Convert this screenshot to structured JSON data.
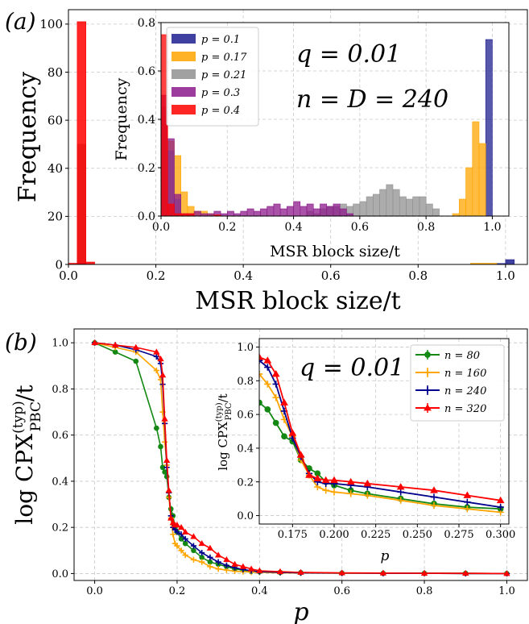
{
  "panel_a": {
    "label": "(a)",
    "main": {
      "xlabel": "MSR block size/t",
      "ylabel": "Frequency",
      "xlim": [
        0,
        1.05
      ],
      "ylim": [
        0,
        106
      ],
      "xticks": [
        "0.0",
        "0.2",
        "0.4",
        "0.6",
        "0.8",
        "1.0"
      ],
      "yticks": [
        "0",
        "20",
        "40",
        "60",
        "80",
        "100"
      ]
    },
    "inset": {
      "xlabel": "MSR block size/t",
      "ylabel": "Frequency",
      "xlim": [
        0,
        1.05
      ],
      "ylim": [
        0,
        0.8
      ],
      "xticks": [
        "0.0",
        "0.2",
        "0.4",
        "0.6",
        "0.8",
        "1.0"
      ],
      "yticks": [
        "0.0",
        "0.2",
        "0.4",
        "0.6",
        "0.8"
      ],
      "annotation_q": "q = 0.01",
      "annotation_n": "n = D = 240"
    },
    "legend": [
      "p = 0.1",
      "p = 0.17",
      "p = 0.21",
      "p = 0.3",
      "p = 0.4"
    ]
  },
  "panel_b": {
    "label": "(b)",
    "main": {
      "xlabel": "p",
      "ylabel": "log CPX(typ)PBC/t",
      "xlim": [
        -0.05,
        1.05
      ],
      "ylim": [
        -0.03,
        1.06
      ],
      "xticks": [
        "0.0",
        "0.2",
        "0.4",
        "0.6",
        "0.8",
        "1.0"
      ],
      "yticks": [
        "0.0",
        "0.2",
        "0.4",
        "0.6",
        "0.8",
        "1.0"
      ]
    },
    "inset": {
      "xlabel": "p",
      "ylabel": "log CPX(typ)PBC/t",
      "xlim": [
        0.155,
        0.305
      ],
      "ylim": [
        -0.05,
        1.05
      ],
      "xticks": [
        "0.175",
        "0.200",
        "0.225",
        "0.250",
        "0.275",
        "0.300"
      ],
      "yticks": [
        "0.0",
        "0.2",
        "0.4",
        "0.6",
        "0.8",
        "1.0"
      ],
      "annotation_q": "q = 0.01"
    },
    "legend": [
      "n = 80",
      "n = 160",
      "n = 240",
      "n = 320"
    ]
  },
  "chart_data": [
    {
      "type": "bar",
      "title": "",
      "xlabel": "MSR block size/t",
      "ylabel": "Frequency",
      "xlim": [
        0,
        1.05
      ],
      "ylim": [
        0,
        106
      ],
      "bin_width": 0.02,
      "series": [
        {
          "name": "p = 0.1",
          "color": "#1f1f8f",
          "bins": [
            [
              0.99,
              0.4
            ],
            [
              1.01,
              2
            ]
          ]
        },
        {
          "name": "p = 0.17",
          "color": "#ffa500",
          "bins": [
            [
              0.93,
              0.5
            ],
            [
              0.95,
              0.5
            ],
            [
              0.97,
              0.5
            ]
          ]
        },
        {
          "name": "p = 0.21",
          "color": "#808080",
          "bins": [
            [
              0.03,
              50
            ]
          ]
        },
        {
          "name": "p = 0.3",
          "color": "#8b008b",
          "bins": [
            [
              0.03,
              0.6
            ]
          ]
        },
        {
          "name": "p = 0.4",
          "color": "#ff0000",
          "bins": [
            [
              0.01,
              0.5
            ],
            [
              0.03,
              101
            ],
            [
              0.05,
              1
            ]
          ]
        }
      ],
      "grid": true
    },
    {
      "type": "bar",
      "title": "",
      "xlabel": "MSR block size/t",
      "ylabel": "Frequency",
      "xlim": [
        0,
        1.05
      ],
      "ylim": [
        0,
        0.8
      ],
      "legend_position": "top-left",
      "bin_width": 0.02,
      "series": [
        {
          "name": "p = 0.1",
          "color": "#1f1f8f",
          "bins": [
            [
              0.99,
              0.73
            ]
          ]
        },
        {
          "name": "p = 0.17",
          "color": "#ffa500",
          "bins": [
            [
              0.01,
              0.41
            ],
            [
              0.03,
              0.31
            ],
            [
              0.05,
              0.25
            ],
            [
              0.07,
              0.1
            ],
            [
              0.09,
              0.04
            ],
            [
              0.11,
              0.02
            ],
            [
              0.13,
              0.02
            ],
            [
              0.15,
              0.01
            ],
            [
              0.89,
              0.01
            ],
            [
              0.91,
              0.07
            ],
            [
              0.93,
              0.2
            ],
            [
              0.95,
              0.39
            ],
            [
              0.97,
              0.3
            ]
          ]
        },
        {
          "name": "p = 0.21",
          "color": "#909090",
          "bins": [
            [
              0.01,
              0.45
            ],
            [
              0.03,
              0.27
            ],
            [
              0.05,
              0.07
            ],
            [
              0.45,
              0.02
            ],
            [
              0.47,
              0.01
            ],
            [
              0.49,
              0.03
            ],
            [
              0.51,
              0.04
            ],
            [
              0.53,
              0.04
            ],
            [
              0.55,
              0.05
            ],
            [
              0.57,
              0.04
            ],
            [
              0.59,
              0.05
            ],
            [
              0.61,
              0.06
            ],
            [
              0.63,
              0.08
            ],
            [
              0.65,
              0.09
            ],
            [
              0.67,
              0.11
            ],
            [
              0.69,
              0.13
            ],
            [
              0.71,
              0.11
            ],
            [
              0.73,
              0.08
            ],
            [
              0.75,
              0.07
            ],
            [
              0.77,
              0.08
            ],
            [
              0.79,
              0.08
            ],
            [
              0.81,
              0.05
            ],
            [
              0.83,
              0.03
            ]
          ]
        },
        {
          "name": "p = 0.3",
          "color": "#8b1a8b",
          "bins": [
            [
              0.01,
              0.5
            ],
            [
              0.03,
              0.32
            ],
            [
              0.05,
              0.09
            ],
            [
              0.07,
              0.01
            ],
            [
              0.09,
              0.01
            ],
            [
              0.11,
              0.02
            ],
            [
              0.13,
              0.01
            ],
            [
              0.15,
              0.01
            ],
            [
              0.17,
              0.02
            ],
            [
              0.19,
              0.01
            ],
            [
              0.21,
              0.02
            ],
            [
              0.23,
              0.01
            ],
            [
              0.25,
              0.02
            ],
            [
              0.27,
              0.03
            ],
            [
              0.29,
              0.02
            ],
            [
              0.31,
              0.03
            ],
            [
              0.33,
              0.04
            ],
            [
              0.35,
              0.05
            ],
            [
              0.37,
              0.03
            ],
            [
              0.39,
              0.04
            ],
            [
              0.41,
              0.06
            ],
            [
              0.43,
              0.04
            ],
            [
              0.45,
              0.05
            ],
            [
              0.47,
              0.03
            ],
            [
              0.49,
              0.05
            ],
            [
              0.51,
              0.04
            ],
            [
              0.53,
              0.05
            ],
            [
              0.55,
              0.03
            ],
            [
              0.57,
              0.01
            ]
          ]
        },
        {
          "name": "p = 0.4",
          "color": "#ff0000",
          "bins": [
            [
              0.01,
              0.75
            ],
            [
              0.03,
              0.05
            ],
            [
              0.05,
              0.01
            ],
            [
              0.07,
              0.01
            ],
            [
              0.09,
              0.01
            ],
            [
              0.17,
              0.005
            ]
          ]
        }
      ],
      "grid": true
    },
    {
      "type": "line",
      "title": "",
      "xlabel": "p",
      "ylabel": "log CPX(typ)PBC/t",
      "xlim": [
        -0.05,
        1.05
      ],
      "ylim": [
        -0.03,
        1.06
      ],
      "grid": true,
      "series": [
        {
          "name": "n = 80",
          "color": "#138813",
          "marker": "circle",
          "x": [
            0.0,
            0.05,
            0.1,
            0.15,
            0.16,
            0.165,
            0.17,
            0.175,
            0.18,
            0.185,
            0.19,
            0.195,
            0.2,
            0.21,
            0.22,
            0.24,
            0.26,
            0.28,
            0.3,
            0.32,
            0.34,
            0.36,
            0.38,
            0.4,
            0.45,
            0.5,
            0.6,
            0.7,
            0.8,
            0.9,
            1.0
          ],
          "y": [
            1.0,
            0.96,
            0.92,
            0.63,
            0.55,
            0.46,
            0.44,
            0.42,
            0.33,
            0.28,
            0.25,
            0.2,
            0.18,
            0.15,
            0.13,
            0.1,
            0.07,
            0.05,
            0.04,
            0.03,
            0.02,
            0.015,
            0.01,
            0.008,
            0.005,
            0.004,
            0.002,
            0.001,
            0.001,
            0.001,
            0.0
          ]
        },
        {
          "name": "n = 160",
          "color": "#ffa500",
          "marker": "cross",
          "x": [
            0.0,
            0.05,
            0.1,
            0.15,
            0.16,
            0.165,
            0.17,
            0.175,
            0.18,
            0.185,
            0.19,
            0.195,
            0.2,
            0.21,
            0.22,
            0.24,
            0.26,
            0.28,
            0.3,
            0.32,
            0.34,
            0.36,
            0.38,
            0.4,
            0.45,
            0.5,
            0.6,
            0.7,
            0.8,
            0.9,
            1.0
          ],
          "y": [
            1.0,
            0.98,
            0.96,
            0.88,
            0.84,
            0.7,
            0.57,
            0.47,
            0.33,
            0.24,
            0.17,
            0.13,
            0.12,
            0.1,
            0.08,
            0.06,
            0.05,
            0.03,
            0.02,
            0.015,
            0.01,
            0.008,
            0.006,
            0.005,
            0.003,
            0.002,
            0.001,
            0.001,
            0.001,
            0.0,
            0.0
          ]
        },
        {
          "name": "n = 240",
          "color": "#00008b",
          "marker": "cross",
          "x": [
            0.0,
            0.05,
            0.1,
            0.15,
            0.16,
            0.165,
            0.17,
            0.175,
            0.18,
            0.185,
            0.19,
            0.195,
            0.2,
            0.21,
            0.22,
            0.24,
            0.26,
            0.28,
            0.3,
            0.32,
            0.34,
            0.36,
            0.38,
            0.4,
            0.45,
            0.5,
            0.6,
            0.7,
            0.8,
            0.9,
            1.0
          ],
          "y": [
            1.0,
            0.99,
            0.97,
            0.94,
            0.91,
            0.82,
            0.65,
            0.46,
            0.35,
            0.25,
            0.2,
            0.19,
            0.18,
            0.17,
            0.15,
            0.12,
            0.09,
            0.07,
            0.05,
            0.035,
            0.025,
            0.018,
            0.012,
            0.008,
            0.005,
            0.003,
            0.002,
            0.001,
            0.001,
            0.0,
            0.0
          ]
        },
        {
          "name": "n = 320",
          "color": "#ff0000",
          "marker": "triangle",
          "x": [
            0.0,
            0.05,
            0.1,
            0.15,
            0.16,
            0.165,
            0.17,
            0.175,
            0.18,
            0.185,
            0.19,
            0.195,
            0.2,
            0.21,
            0.22,
            0.24,
            0.26,
            0.28,
            0.3,
            0.32,
            0.34,
            0.36,
            0.38,
            0.4,
            0.45,
            0.5,
            0.6,
            0.7,
            0.8,
            0.9,
            1.0
          ],
          "y": [
            1.0,
            0.99,
            0.98,
            0.96,
            0.93,
            0.86,
            0.67,
            0.49,
            0.36,
            0.24,
            0.22,
            0.21,
            0.21,
            0.2,
            0.18,
            0.16,
            0.13,
            0.11,
            0.08,
            0.06,
            0.04,
            0.03,
            0.02,
            0.012,
            0.008,
            0.005,
            0.003,
            0.002,
            0.001,
            0.001,
            0.0
          ]
        }
      ]
    },
    {
      "type": "line",
      "title": "",
      "xlabel": "p",
      "ylabel": "log CPX(typ)PBC/t",
      "xlim": [
        0.155,
        0.305
      ],
      "ylim": [
        -0.05,
        1.05
      ],
      "legend_position": "top-right",
      "grid": true,
      "series": [
        {
          "name": "n = 80",
          "color": "#138813",
          "marker": "circle",
          "x": [
            0.155,
            0.16,
            0.165,
            0.17,
            0.175,
            0.18,
            0.185,
            0.19,
            0.195,
            0.2,
            0.21,
            0.22,
            0.24,
            0.26,
            0.28,
            0.3
          ],
          "y": [
            0.67,
            0.63,
            0.55,
            0.47,
            0.44,
            0.33,
            0.28,
            0.25,
            0.2,
            0.18,
            0.15,
            0.13,
            0.1,
            0.07,
            0.05,
            0.04
          ]
        },
        {
          "name": "n = 160",
          "color": "#ffa500",
          "marker": "cross",
          "x": [
            0.155,
            0.16,
            0.165,
            0.17,
            0.175,
            0.18,
            0.185,
            0.19,
            0.195,
            0.2,
            0.21,
            0.22,
            0.24,
            0.26,
            0.28,
            0.3
          ],
          "y": [
            0.84,
            0.78,
            0.7,
            0.57,
            0.47,
            0.33,
            0.24,
            0.17,
            0.15,
            0.14,
            0.13,
            0.12,
            0.09,
            0.06,
            0.04,
            0.02
          ]
        },
        {
          "name": "n = 240",
          "color": "#00008b",
          "marker": "cross",
          "x": [
            0.155,
            0.16,
            0.165,
            0.17,
            0.175,
            0.18,
            0.185,
            0.19,
            0.195,
            0.2,
            0.21,
            0.22,
            0.24,
            0.26,
            0.28,
            0.3
          ],
          "y": [
            0.92,
            0.88,
            0.78,
            0.62,
            0.46,
            0.35,
            0.25,
            0.2,
            0.19,
            0.19,
            0.18,
            0.17,
            0.14,
            0.11,
            0.08,
            0.05
          ]
        },
        {
          "name": "n = 320",
          "color": "#ff0000",
          "marker": "triangle",
          "x": [
            0.155,
            0.16,
            0.165,
            0.17,
            0.175,
            0.18,
            0.185,
            0.19,
            0.195,
            0.2,
            0.21,
            0.22,
            0.24,
            0.26,
            0.28,
            0.3
          ],
          "y": [
            0.94,
            0.92,
            0.84,
            0.67,
            0.49,
            0.36,
            0.24,
            0.22,
            0.21,
            0.21,
            0.2,
            0.19,
            0.17,
            0.15,
            0.12,
            0.09
          ]
        }
      ]
    }
  ]
}
